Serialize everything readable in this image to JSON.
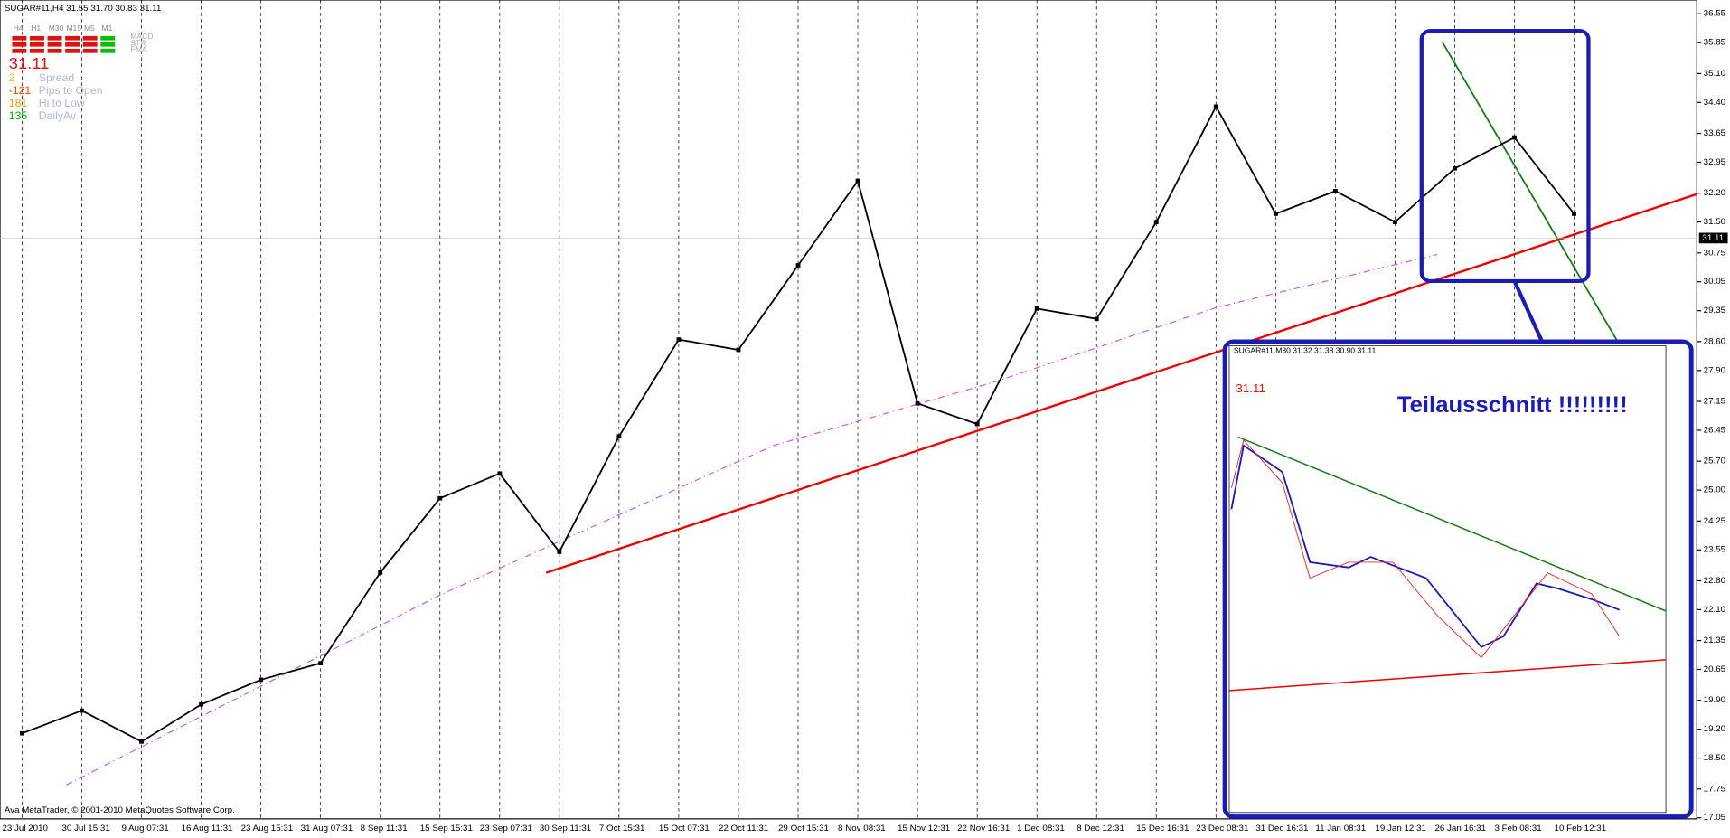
{
  "chart_data": {
    "type": "line",
    "title": "SUGAR#11,H4  31.55 31.70 30.83 31.11",
    "categories": [
      "23 Jul 2010",
      "30 Jul 15:31",
      "9 Aug 07:31",
      "16 Aug 11:31",
      "23 Aug 15:31",
      "31 Aug 07:31",
      "8 Sep 11:31",
      "15 Sep 15:31",
      "23 Sep 07:31",
      "30 Sep 11:31",
      "7 Oct 15:31",
      "15 Oct 07:31",
      "22 Oct 11:31",
      "29 Oct 15:31",
      "8 Nov 08:31",
      "15 Nov 12:31",
      "22 Nov 16:31",
      "1 Dec 08:31",
      "8 Dec 12:31",
      "15 Dec 16:31",
      "23 Dec 08:31",
      "31 Dec 16:31",
      "11 Jan 08:31",
      "19 Jan 12:31",
      "26 Jan 16:31",
      "3 Feb 08:31",
      "10 Feb 12:31"
    ],
    "values": [
      19.1,
      19.65,
      18.9,
      19.8,
      20.4,
      20.8,
      23.0,
      24.8,
      25.4,
      23.5,
      26.3,
      28.65,
      28.4,
      30.45,
      32.5,
      27.1,
      26.6,
      29.4,
      29.15,
      31.5,
      34.3,
      31.7,
      32.25,
      31.5,
      32.8,
      33.55,
      31.7
    ],
    "color": "#000000",
    "last_price": 31.11,
    "ylim": [
      17.05,
      36.55
    ],
    "yticks": [
      17.05,
      17.75,
      {
        "value": 18.5,
        "label": "18.50"
      },
      {
        "value": 19.2,
        "label": "19.20"
      },
      {
        "value": 19.9,
        "label": "19.90"
      },
      20.65,
      21.35,
      {
        "value": 22.1,
        "label": "22.10"
      },
      {
        "value": 22.8,
        "label": "22.80"
      },
      23.55,
      24.25,
      {
        "value": 25,
        "label": "25.00"
      },
      {
        "value": 25.7,
        "label": "25.70"
      },
      26.45,
      27.15,
      {
        "value": 27.9,
        "label": "27.90"
      },
      {
        "value": 28.6,
        "label": "28.60"
      },
      29.35,
      30.05,
      30.75,
      {
        "value": 31.5,
        "label": "31.50"
      },
      {
        "value": 32.2,
        "label": "32.20"
      },
      32.95,
      33.65,
      {
        "value": 34.4,
        "label": "34.40"
      },
      {
        "value": 35.1,
        "label": "35.10"
      },
      35.85,
      36.55
    ],
    "grid": true,
    "info": {
      "timeframes": [
        "H4",
        "H1",
        "M30",
        "M15",
        "M5",
        "M1"
      ],
      "indicators": [
        "MACD",
        "STR",
        "EMA"
      ],
      "price": "31.11",
      "stats": [
        {
          "value": 2,
          "label": "Spread"
        },
        {
          "value": -121,
          "label": "Pips to Open"
        },
        {
          "value": 181,
          "label": "Hi to Low"
        },
        {
          "value": 135,
          "label": "DailyAv"
        }
      ]
    },
    "copyright": "Ava MetaTrader, © 2001-2010 MetaQuotes Software Corp.",
    "inset": {
      "title": "SUGAR#11,M30  31.32 31.38 30.90 31.11",
      "caption": "Teilausschnitt !!!!!!!!!"
    }
  }
}
